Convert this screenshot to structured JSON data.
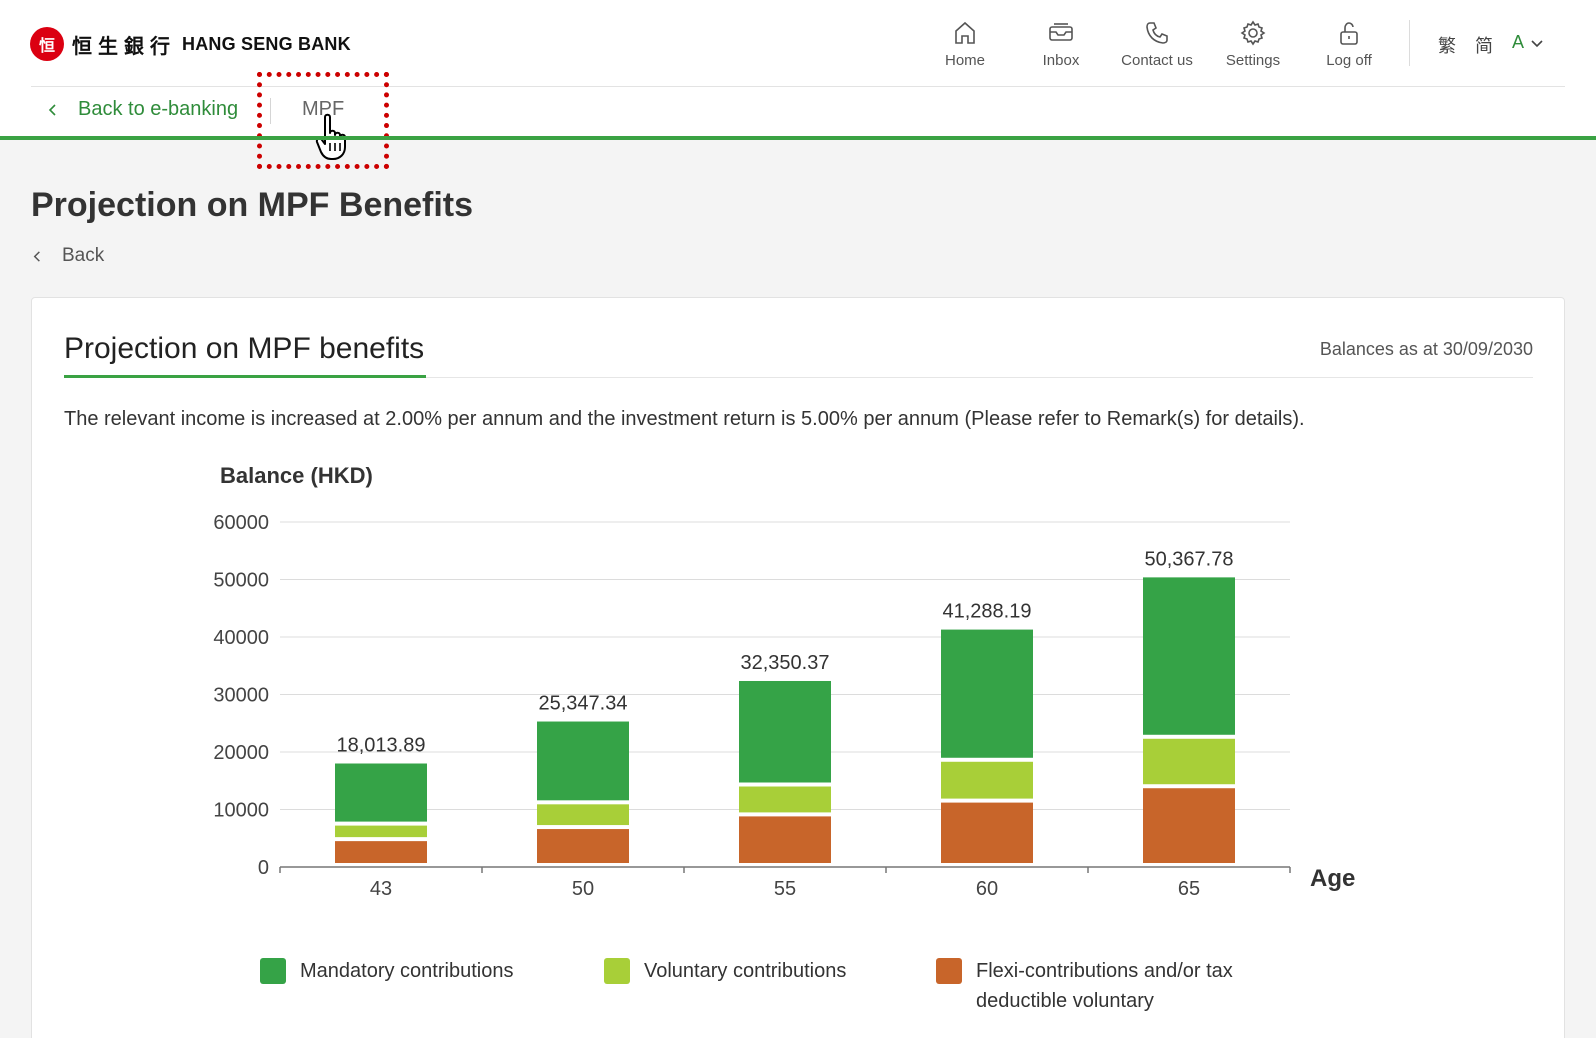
{
  "header": {
    "logo_mark": "恒",
    "logo_zh": "恒生銀行",
    "logo_en": "HANG SENG BANK",
    "nav": [
      {
        "label": "Home",
        "icon": "home-icon"
      },
      {
        "label": "Inbox",
        "icon": "inbox-icon"
      },
      {
        "label": "Contact us",
        "icon": "phone-icon"
      },
      {
        "label": "Settings",
        "icon": "gear-icon"
      },
      {
        "label": "Log off",
        "icon": "unlock-icon"
      }
    ],
    "lang_trad": "繁",
    "lang_simp": "简",
    "font_size_label": "A"
  },
  "subnav": {
    "back_label": "Back to e-banking",
    "current_tab": "MPF"
  },
  "page": {
    "title": "Projection on MPF Benefits",
    "back_label": "Back"
  },
  "card": {
    "title": "Projection on MPF benefits",
    "balances_as_at": "Balances as at 30/09/2030",
    "description": "The relevant income is increased at 2.00% per annum and the investment return is 5.00% per annum (Please refer to Remark(s) for details)."
  },
  "colors": {
    "brand_red": "#db0011",
    "accent_green": "#3aa243",
    "mandatory": "#35a347",
    "voluntary": "#a8cf38",
    "flexi": "#c8652a",
    "highlight": "#cc0000"
  },
  "chart_data": {
    "type": "bar",
    "stacked": true,
    "ylabel": "Balance (HKD)",
    "xlabel": "Age",
    "ylim": [
      0,
      60000
    ],
    "yticks": [
      0,
      10000,
      20000,
      30000,
      40000,
      50000,
      60000
    ],
    "categories": [
      "43",
      "50",
      "55",
      "60",
      "65"
    ],
    "totals": [
      "18,013.89",
      "25,347.34",
      "32,350.37",
      "41,288.19",
      "50,367.78"
    ],
    "series": [
      {
        "name": "Flexi-contributions and/or tax deductible voluntary",
        "color": "#c8652a",
        "values": [
          4500,
          6600,
          8800,
          11200,
          13700
        ]
      },
      {
        "name": "Voluntary contributions",
        "color": "#a8cf38",
        "values": [
          2700,
          4300,
          5200,
          7100,
          8600
        ]
      },
      {
        "name": "Mandatory contributions",
        "color": "#35a347",
        "values": [
          10800,
          14400,
          18350,
          22990,
          28070
        ]
      }
    ],
    "grid": true,
    "legend_position": "bottom"
  }
}
